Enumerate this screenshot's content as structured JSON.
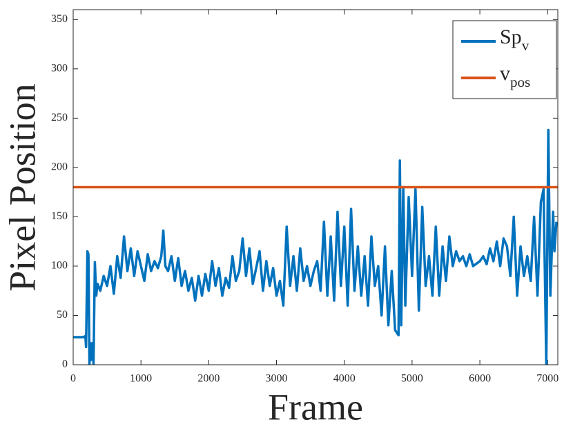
{
  "chart_data": {
    "type": "line",
    "xlabel": "Frame",
    "ylabel": "Pixel Position",
    "xlim": [
      0,
      7150
    ],
    "ylim": [
      0,
      360
    ],
    "xticks": [
      0,
      1000,
      2000,
      3000,
      4000,
      5000,
      6000,
      7000
    ],
    "yticks": [
      0,
      50,
      100,
      150,
      200,
      250,
      300,
      350
    ],
    "grid": false,
    "legend": "northeast",
    "series": [
      {
        "name": "Sp_v",
        "color": "#0072bd",
        "x": [
          0,
          150,
          180,
          190,
          210,
          225,
          240,
          255,
          270,
          290,
          300,
          320,
          340,
          360,
          400,
          450,
          500,
          550,
          600,
          650,
          700,
          750,
          800,
          850,
          900,
          950,
          1000,
          1050,
          1100,
          1150,
          1200,
          1250,
          1300,
          1330,
          1360,
          1400,
          1450,
          1500,
          1550,
          1600,
          1650,
          1700,
          1750,
          1800,
          1850,
          1900,
          1950,
          2000,
          2050,
          2100,
          2150,
          2200,
          2250,
          2300,
          2350,
          2400,
          2450,
          2500,
          2550,
          2600,
          2650,
          2700,
          2750,
          2800,
          2850,
          2900,
          2950,
          3000,
          3050,
          3100,
          3150,
          3200,
          3250,
          3300,
          3350,
          3400,
          3450,
          3500,
          3550,
          3600,
          3650,
          3700,
          3750,
          3800,
          3850,
          3900,
          3950,
          4000,
          4050,
          4100,
          4150,
          4200,
          4250,
          4300,
          4350,
          4400,
          4450,
          4500,
          4550,
          4600,
          4650,
          4700,
          4750,
          4800,
          4820,
          4840,
          4870,
          4900,
          4950,
          5000,
          5050,
          5100,
          5150,
          5200,
          5250,
          5300,
          5350,
          5400,
          5450,
          5500,
          5550,
          5600,
          5650,
          5700,
          5750,
          5800,
          5850,
          5900,
          6000,
          6050,
          6100,
          6150,
          6200,
          6250,
          6300,
          6350,
          6400,
          6450,
          6500,
          6550,
          6600,
          6650,
          6700,
          6750,
          6800,
          6850,
          6900,
          6940,
          6980,
          7010,
          7040,
          7080,
          7100,
          7130
        ],
        "values": [
          28,
          28,
          29,
          18,
          115,
          112,
          0,
          22,
          5,
          22,
          0,
          104,
          70,
          82,
          75,
          90,
          80,
          100,
          72,
          110,
          88,
          130,
          95,
          118,
          90,
          115,
          100,
          85,
          112,
          95,
          105,
          98,
          110,
          136,
          100,
          95,
          110,
          85,
          108,
          80,
          95,
          75,
          88,
          65,
          90,
          70,
          92,
          75,
          105,
          80,
          98,
          70,
          88,
          78,
          110,
          85,
          95,
          128,
          90,
          118,
          82,
          98,
          115,
          75,
          105,
          80,
          98,
          70,
          85,
          60,
          140,
          80,
          110,
          75,
          118,
          85,
          100,
          80,
          95,
          105,
          75,
          145,
          70,
          130,
          65,
          155,
          80,
          140,
          60,
          158,
          75,
          120,
          70,
          110,
          60,
          130,
          80,
          100,
          50,
          120,
          40,
          95,
          35,
          30,
          207,
          40,
          180,
          60,
          170,
          90,
          178,
          55,
          160,
          80,
          110,
          70,
          140,
          70,
          120,
          85,
          130,
          100,
          115,
          105,
          110,
          100,
          112,
          100,
          105,
          110,
          102,
          118,
          105,
          125,
          100,
          128,
          120,
          90,
          150,
          70,
          120,
          90,
          110,
          85,
          150,
          70,
          165,
          178,
          0,
          238,
          70,
          155,
          115,
          145
        ]
      },
      {
        "name": "v_pos",
        "color": "#d95319",
        "x": [
          0,
          7150
        ],
        "values": [
          180,
          180
        ]
      }
    ]
  }
}
